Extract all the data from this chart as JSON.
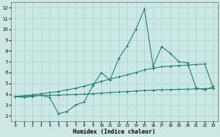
{
  "xlabel": "Humidex (Indice chaleur)",
  "background_color": "#cce8e4",
  "grid_color": "#aacfca",
  "line_color": "#1a7a6e",
  "xlim": [
    -0.5,
    23.5
  ],
  "ylim": [
    1.5,
    12.5
  ],
  "xticks": [
    0,
    1,
    2,
    3,
    4,
    5,
    6,
    7,
    8,
    9,
    10,
    11,
    12,
    13,
    14,
    15,
    16,
    17,
    18,
    19,
    20,
    21,
    22,
    23
  ],
  "yticks": [
    2,
    3,
    4,
    5,
    6,
    7,
    8,
    9,
    10,
    11,
    12
  ],
  "series1_y": [
    3.8,
    3.7,
    3.8,
    3.9,
    3.7,
    2.2,
    2.4,
    3.0,
    3.3,
    4.8,
    6.0,
    5.3,
    7.3,
    8.5,
    10.0,
    11.9,
    6.6,
    8.4,
    7.8,
    7.0,
    6.9,
    4.6,
    4.4,
    4.7
  ],
  "series2_y": [
    3.8,
    3.82,
    3.85,
    3.88,
    3.9,
    3.92,
    3.95,
    3.98,
    4.01,
    4.05,
    4.1,
    4.15,
    4.2,
    4.25,
    4.3,
    4.35,
    4.38,
    4.41,
    4.43,
    4.45,
    4.47,
    4.49,
    4.51,
    4.53
  ],
  "series3_y": [
    3.8,
    3.85,
    3.95,
    4.05,
    4.15,
    4.25,
    4.4,
    4.55,
    4.75,
    4.95,
    5.2,
    5.4,
    5.6,
    5.8,
    6.0,
    6.25,
    6.4,
    6.55,
    6.6,
    6.65,
    6.7,
    6.75,
    6.8,
    4.55
  ]
}
